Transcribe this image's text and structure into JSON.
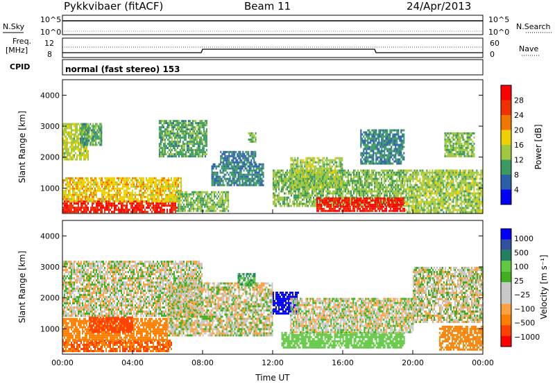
{
  "header": {
    "station": "Pykkvibaer (fitACF)",
    "beam": "Beam 11",
    "date": "24/Apr/2013"
  },
  "panels": {
    "sky": {
      "left_label": "N.Sky",
      "left_ticks": [
        "10^5",
        "10^0"
      ],
      "right_ticks": [
        "10^5",
        "10^0"
      ],
      "right_label": "N.Search"
    },
    "freq": {
      "left_label_1": "Freq.",
      "left_label_2": "[MHz]",
      "left_ticks": [
        "12",
        "8"
      ],
      "right_ticks": [
        "60",
        "0"
      ],
      "right_label": "Nave"
    },
    "cpid": {
      "label": "CPID",
      "mode_text": "normal (fast stereo) 153"
    }
  },
  "colors": {
    "power_scale": [
      "#0000ff",
      "#2a60a8",
      "#3a9a60",
      "#a0c840",
      "#f0d000",
      "#f07800",
      "#f03000",
      "#ff0000"
    ],
    "velocity_scale": [
      "#ff0000",
      "#ff4000",
      "#ff8000",
      "#ffa040",
      "#c8c8c8",
      "#c8c8c8",
      "#40b020",
      "#60c840",
      "#208060",
      "#3050a0",
      "#0000ff"
    ]
  },
  "chart_data": [
    {
      "type": "heatmap",
      "name": "power",
      "ylabel": "Slant Range [km]",
      "ylim": [
        180,
        4500
      ],
      "yticks": [
        "1000",
        "2000",
        "3000",
        "4000"
      ],
      "xlim_hours": [
        0,
        24
      ],
      "xtick_labels": [
        "00:00",
        "04:00",
        "08:00",
        "12:00",
        "16:00",
        "20:00",
        "00:00"
      ],
      "colorbar": {
        "label": "Power [dB]",
        "ticks": [
          "4",
          "8",
          "12",
          "16",
          "20",
          "24",
          "28"
        ],
        "range": [
          0,
          30
        ]
      },
      "echo_regions": [
        {
          "t": [
            0.0,
            6.5
          ],
          "r": [
            250,
            600
          ],
          "value": 26
        },
        {
          "t": [
            0.0,
            6.8
          ],
          "r": [
            600,
            1350
          ],
          "value": 17
        },
        {
          "t": [
            6.5,
            9.5
          ],
          "r": [
            250,
            900
          ],
          "value": 12
        },
        {
          "t": [
            0.0,
            1.5
          ],
          "r": [
            1900,
            3100
          ],
          "value": 14
        },
        {
          "t": [
            1.0,
            2.2
          ],
          "r": [
            2400,
            3100
          ],
          "value": 10
        },
        {
          "t": [
            5.5,
            8.2
          ],
          "r": [
            2000,
            3200
          ],
          "value": 10
        },
        {
          "t": [
            8.5,
            11.5
          ],
          "r": [
            1100,
            1800
          ],
          "value": 8
        },
        {
          "t": [
            9.0,
            11.0
          ],
          "r": [
            1850,
            2200
          ],
          "value": 7
        },
        {
          "t": [
            12.0,
            19.5
          ],
          "r": [
            400,
            1600
          ],
          "value": 12
        },
        {
          "t": [
            14.5,
            19.5
          ],
          "r": [
            250,
            700
          ],
          "value": 27
        },
        {
          "t": [
            13.0,
            16.0
          ],
          "r": [
            1000,
            2000
          ],
          "value": 13
        },
        {
          "t": [
            17.0,
            19.5
          ],
          "r": [
            1800,
            2900
          ],
          "value": 8
        },
        {
          "t": [
            19.5,
            24.0
          ],
          "r": [
            250,
            1600
          ],
          "value": 13
        },
        {
          "t": [
            21.8,
            23.5
          ],
          "r": [
            2000,
            2800
          ],
          "value": 12
        },
        {
          "t": [
            10.6,
            11.0
          ],
          "r": [
            2500,
            2800
          ],
          "value": 12
        }
      ]
    },
    {
      "type": "heatmap",
      "name": "velocity",
      "ylabel": "Slant Range [km]",
      "xlabel": "Time UT",
      "ylim": [
        180,
        4500
      ],
      "yticks": [
        "1000",
        "2000",
        "3000",
        "4000"
      ],
      "xlim_hours": [
        0,
        24
      ],
      "xtick_labels": [
        "00:00",
        "04:00",
        "08:00",
        "12:00",
        "16:00",
        "20:00",
        "00:00"
      ],
      "colorbar": {
        "label": "Velocity [m s⁻¹]",
        "ticks": [
          "1000",
          "500",
          "100",
          "25",
          "−25",
          "−100",
          "−500",
          "−1000"
        ]
      },
      "echo_regions": [
        {
          "t": [
            0.0,
            6.2
          ],
          "r": [
            250,
            650
          ],
          "value": -300
        },
        {
          "t": [
            0.0,
            6.0
          ],
          "r": [
            650,
            1350
          ],
          "value": -150
        },
        {
          "t": [
            1.5,
            4.0
          ],
          "r": [
            900,
            1400
          ],
          "value": -500
        },
        {
          "t": [
            0.0,
            8.0
          ],
          "r": [
            1400,
            3200
          ],
          "value": 0
        },
        {
          "t": [
            6.0,
            12.0
          ],
          "r": [
            800,
            2500
          ],
          "value": 0
        },
        {
          "t": [
            12.5,
            19.5
          ],
          "r": [
            400,
            900
          ],
          "value": 150
        },
        {
          "t": [
            12.0,
            13.5
          ],
          "r": [
            1500,
            2200
          ],
          "value": 800
        },
        {
          "t": [
            13.0,
            20.0
          ],
          "r": [
            900,
            2000
          ],
          "value": 0
        },
        {
          "t": [
            20.0,
            24.0
          ],
          "r": [
            1200,
            3000
          ],
          "value": 0
        },
        {
          "t": [
            21.5,
            24.0
          ],
          "r": [
            300,
            1100
          ],
          "value": -200
        },
        {
          "t": [
            10.0,
            11.0
          ],
          "r": [
            2400,
            2800
          ],
          "value": 300
        }
      ]
    }
  ]
}
